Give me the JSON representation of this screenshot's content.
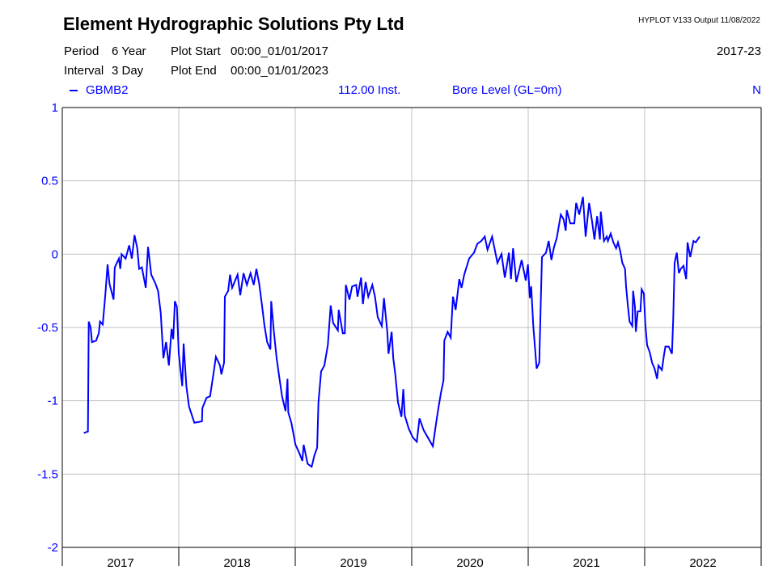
{
  "header": {
    "title": "Element Hydrographic Solutions Pty Ltd",
    "software": "HYPLOT V133  Output 11/08/2022",
    "period_label": "Period",
    "period_value": "6 Year",
    "interval_label": "Interval",
    "interval_value": "3 Day",
    "plot_start_label": "Plot Start",
    "plot_start_value": "00:00_01/01/2017",
    "plot_end_label": "Plot End",
    "plot_end_value": "00:00_01/01/2023",
    "range_label": "2017-23"
  },
  "series_info": {
    "site": "GBMB2",
    "variable": "112.00  Inst.",
    "description": "Bore Level (GL=0m)",
    "flag": "N"
  },
  "colors": {
    "series": "#0000ff",
    "grid": "#c0c0c0",
    "axis": "#000000"
  },
  "chart_data": {
    "type": "line",
    "title": "Bore Level (GL=0m)",
    "xlabel": "",
    "ylabel": "",
    "xlim": [
      2017,
      2023
    ],
    "ylim": [
      -2,
      1
    ],
    "yticks": [
      1,
      0.5,
      0,
      -0.5,
      -1,
      -1.5,
      -2
    ],
    "ytick_labels": [
      "1",
      "0.5",
      "0",
      "-0.5",
      "-1",
      "-1.5",
      "-2"
    ],
    "xtick_labels": [
      "2017",
      "2018",
      "2019",
      "2020",
      "2021",
      "2022"
    ],
    "grid": true,
    "legend": "top-left",
    "series": [
      {
        "name": "GBMB2",
        "points": [
          [
            2017.185,
            -1.22
          ],
          [
            2017.22,
            -1.21
          ],
          [
            2017.227,
            -0.46
          ],
          [
            2017.243,
            -0.5
          ],
          [
            2017.255,
            -0.6
          ],
          [
            2017.29,
            -0.59
          ],
          [
            2017.313,
            -0.54
          ],
          [
            2017.324,
            -0.46
          ],
          [
            2017.347,
            -0.48
          ],
          [
            2017.358,
            -0.38
          ],
          [
            2017.37,
            -0.27
          ],
          [
            2017.389,
            -0.07
          ],
          [
            2017.405,
            -0.2
          ],
          [
            2017.44,
            -0.31
          ],
          [
            2017.451,
            -0.09
          ],
          [
            2017.486,
            -0.03
          ],
          [
            2017.498,
            -0.1
          ],
          [
            2017.509,
            0.0
          ],
          [
            2017.544,
            -0.03
          ],
          [
            2017.574,
            0.06
          ],
          [
            2017.597,
            -0.03
          ],
          [
            2017.62,
            0.13
          ],
          [
            2017.644,
            0.04
          ],
          [
            2017.66,
            -0.1
          ],
          [
            2017.683,
            -0.09
          ],
          [
            2017.717,
            -0.23
          ],
          [
            2017.736,
            0.05
          ],
          [
            2017.764,
            -0.14
          ],
          [
            2017.799,
            -0.2
          ],
          [
            2017.822,
            -0.25
          ],
          [
            2017.845,
            -0.4
          ],
          [
            2017.868,
            -0.71
          ],
          [
            2017.891,
            -0.6
          ],
          [
            2017.915,
            -0.76
          ],
          [
            2017.938,
            -0.51
          ],
          [
            2017.953,
            -0.58
          ],
          [
            2017.967,
            -0.32
          ],
          [
            2017.984,
            -0.36
          ],
          [
            2018.0,
            -0.68
          ],
          [
            2018.03,
            -0.9
          ],
          [
            2018.042,
            -0.61
          ],
          [
            2018.065,
            -0.9
          ],
          [
            2018.088,
            -1.04
          ],
          [
            2018.134,
            -1.15
          ],
          [
            2018.199,
            -1.14
          ],
          [
            2018.203,
            -1.05
          ],
          [
            2018.238,
            -0.98
          ],
          [
            2018.269,
            -0.97
          ],
          [
            2018.297,
            -0.82
          ],
          [
            2018.319,
            -0.7
          ],
          [
            2018.354,
            -0.76
          ],
          [
            2018.366,
            -0.82
          ],
          [
            2018.389,
            -0.74
          ],
          [
            2018.396,
            -0.29
          ],
          [
            2018.424,
            -0.25
          ],
          [
            2018.44,
            -0.14
          ],
          [
            2018.458,
            -0.23
          ],
          [
            2018.505,
            -0.14
          ],
          [
            2018.528,
            -0.28
          ],
          [
            2018.556,
            -0.13
          ],
          [
            2018.585,
            -0.21
          ],
          [
            2018.616,
            -0.13
          ],
          [
            2018.644,
            -0.21
          ],
          [
            2018.667,
            -0.1
          ],
          [
            2018.69,
            -0.2
          ],
          [
            2018.713,
            -0.34
          ],
          [
            2018.736,
            -0.49
          ],
          [
            2018.759,
            -0.6
          ],
          [
            2018.787,
            -0.65
          ],
          [
            2018.794,
            -0.32
          ],
          [
            2018.817,
            -0.53
          ],
          [
            2018.84,
            -0.71
          ],
          [
            2018.863,
            -0.84
          ],
          [
            2018.887,
            -0.97
          ],
          [
            2018.917,
            -1.07
          ],
          [
            2018.933,
            -0.85
          ],
          [
            2018.94,
            -1.08
          ],
          [
            2018.967,
            -1.15
          ],
          [
            2019.002,
            -1.3
          ],
          [
            2019.037,
            -1.36
          ],
          [
            2019.061,
            -1.41
          ],
          [
            2019.072,
            -1.3
          ],
          [
            2019.106,
            -1.43
          ],
          [
            2019.141,
            -1.45
          ],
          [
            2019.165,
            -1.37
          ],
          [
            2019.188,
            -1.32
          ],
          [
            2019.199,
            -1.01
          ],
          [
            2019.222,
            -0.8
          ],
          [
            2019.25,
            -0.76
          ],
          [
            2019.28,
            -0.62
          ],
          [
            2019.292,
            -0.49
          ],
          [
            2019.304,
            -0.35
          ],
          [
            2019.326,
            -0.47
          ],
          [
            2019.366,
            -0.52
          ],
          [
            2019.373,
            -0.38
          ],
          [
            2019.408,
            -0.54
          ],
          [
            2019.426,
            -0.54
          ],
          [
            2019.435,
            -0.21
          ],
          [
            2019.465,
            -0.31
          ],
          [
            2019.488,
            -0.22
          ],
          [
            2019.523,
            -0.21
          ],
          [
            2019.535,
            -0.29
          ],
          [
            2019.565,
            -0.16
          ],
          [
            2019.581,
            -0.34
          ],
          [
            2019.604,
            -0.19
          ],
          [
            2019.627,
            -0.29
          ],
          [
            2019.662,
            -0.21
          ],
          [
            2019.685,
            -0.29
          ],
          [
            2019.708,
            -0.43
          ],
          [
            2019.743,
            -0.49
          ],
          [
            2019.762,
            -0.3
          ],
          [
            2019.79,
            -0.53
          ],
          [
            2019.801,
            -0.68
          ],
          [
            2019.828,
            -0.53
          ],
          [
            2019.842,
            -0.71
          ],
          [
            2019.859,
            -0.82
          ],
          [
            2019.882,
            -1.01
          ],
          [
            2019.912,
            -1.11
          ],
          [
            2019.928,
            -0.92
          ],
          [
            2019.94,
            -1.1
          ],
          [
            2019.974,
            -1.19
          ],
          [
            2020.009,
            -1.25
          ],
          [
            2020.044,
            -1.28
          ],
          [
            2020.067,
            -1.12
          ],
          [
            2020.102,
            -1.2
          ],
          [
            2020.181,
            -1.31
          ],
          [
            2020.204,
            -1.18
          ],
          [
            2020.227,
            -1.06
          ],
          [
            2020.25,
            -0.95
          ],
          [
            2020.273,
            -0.86
          ],
          [
            2020.28,
            -0.59
          ],
          [
            2020.308,
            -0.53
          ],
          [
            2020.335,
            -0.57
          ],
          [
            2020.354,
            -0.29
          ],
          [
            2020.377,
            -0.38
          ],
          [
            2020.408,
            -0.17
          ],
          [
            2020.428,
            -0.23
          ],
          [
            2020.451,
            -0.14
          ],
          [
            2020.493,
            -0.03
          ],
          [
            2020.535,
            0.01
          ],
          [
            2020.563,
            0.07
          ],
          [
            2020.597,
            0.09
          ],
          [
            2020.627,
            0.12
          ],
          [
            2020.651,
            0.03
          ],
          [
            2020.69,
            0.12
          ],
          [
            2020.713,
            0.03
          ],
          [
            2020.736,
            -0.06
          ],
          [
            2020.771,
            0.0
          ],
          [
            2020.799,
            -0.16
          ],
          [
            2020.835,
            0.01
          ],
          [
            2020.852,
            -0.17
          ],
          [
            2020.87,
            0.04
          ],
          [
            2020.898,
            -0.19
          ],
          [
            2020.944,
            -0.04
          ],
          [
            2020.979,
            -0.18
          ],
          [
            2020.998,
            -0.07
          ],
          [
            2021.014,
            -0.3
          ],
          [
            2021.026,
            -0.22
          ],
          [
            2021.044,
            -0.49
          ],
          [
            2021.072,
            -0.78
          ],
          [
            2021.095,
            -0.74
          ],
          [
            2021.106,
            -0.38
          ],
          [
            2021.118,
            -0.02
          ],
          [
            2021.153,
            0.01
          ],
          [
            2021.176,
            0.09
          ],
          [
            2021.199,
            -0.04
          ],
          [
            2021.222,
            0.05
          ],
          [
            2021.245,
            0.11
          ],
          [
            2021.28,
            0.27
          ],
          [
            2021.303,
            0.24
          ],
          [
            2021.322,
            0.16
          ],
          [
            2021.331,
            0.3
          ],
          [
            2021.361,
            0.21
          ],
          [
            2021.396,
            0.21
          ],
          [
            2021.412,
            0.35
          ],
          [
            2021.438,
            0.27
          ],
          [
            2021.47,
            0.39
          ],
          [
            2021.493,
            0.12
          ],
          [
            2021.523,
            0.35
          ],
          [
            2021.547,
            0.23
          ],
          [
            2021.569,
            0.1
          ],
          [
            2021.592,
            0.26
          ],
          [
            2021.616,
            0.1
          ],
          [
            2021.623,
            0.29
          ],
          [
            2021.651,
            0.09
          ],
          [
            2021.674,
            0.12
          ],
          [
            2021.685,
            0.09
          ],
          [
            2021.708,
            0.14
          ],
          [
            2021.731,
            0.08
          ],
          [
            2021.755,
            0.04
          ],
          [
            2021.771,
            0.08
          ],
          [
            2021.79,
            0.02
          ],
          [
            2021.808,
            -0.06
          ],
          [
            2021.831,
            -0.1
          ],
          [
            2021.84,
            -0.22
          ],
          [
            2021.854,
            -0.34
          ],
          [
            2021.87,
            -0.46
          ],
          [
            2021.894,
            -0.49
          ],
          [
            2021.901,
            -0.25
          ],
          [
            2021.917,
            -0.36
          ],
          [
            2021.924,
            -0.53
          ],
          [
            2021.94,
            -0.39
          ],
          [
            2021.963,
            -0.39
          ],
          [
            2021.974,
            -0.24
          ],
          [
            2021.993,
            -0.27
          ],
          [
            2022.005,
            -0.47
          ],
          [
            2022.021,
            -0.62
          ],
          [
            2022.044,
            -0.67
          ],
          [
            2022.063,
            -0.74
          ],
          [
            2022.085,
            -0.78
          ],
          [
            2022.106,
            -0.85
          ],
          [
            2022.118,
            -0.76
          ],
          [
            2022.148,
            -0.79
          ],
          [
            2022.165,
            -0.69
          ],
          [
            2022.178,
            -0.63
          ],
          [
            2022.206,
            -0.63
          ],
          [
            2022.234,
            -0.68
          ],
          [
            2022.245,
            -0.44
          ],
          [
            2022.257,
            -0.06
          ],
          [
            2022.276,
            0.01
          ],
          [
            2022.294,
            -0.13
          ],
          [
            2022.31,
            -0.1
          ],
          [
            2022.333,
            -0.08
          ],
          [
            2022.356,
            -0.17
          ],
          [
            2022.368,
            0.08
          ],
          [
            2022.391,
            -0.02
          ],
          [
            2022.419,
            0.09
          ],
          [
            2022.438,
            0.08
          ],
          [
            2022.472,
            0.12
          ]
        ]
      }
    ]
  }
}
